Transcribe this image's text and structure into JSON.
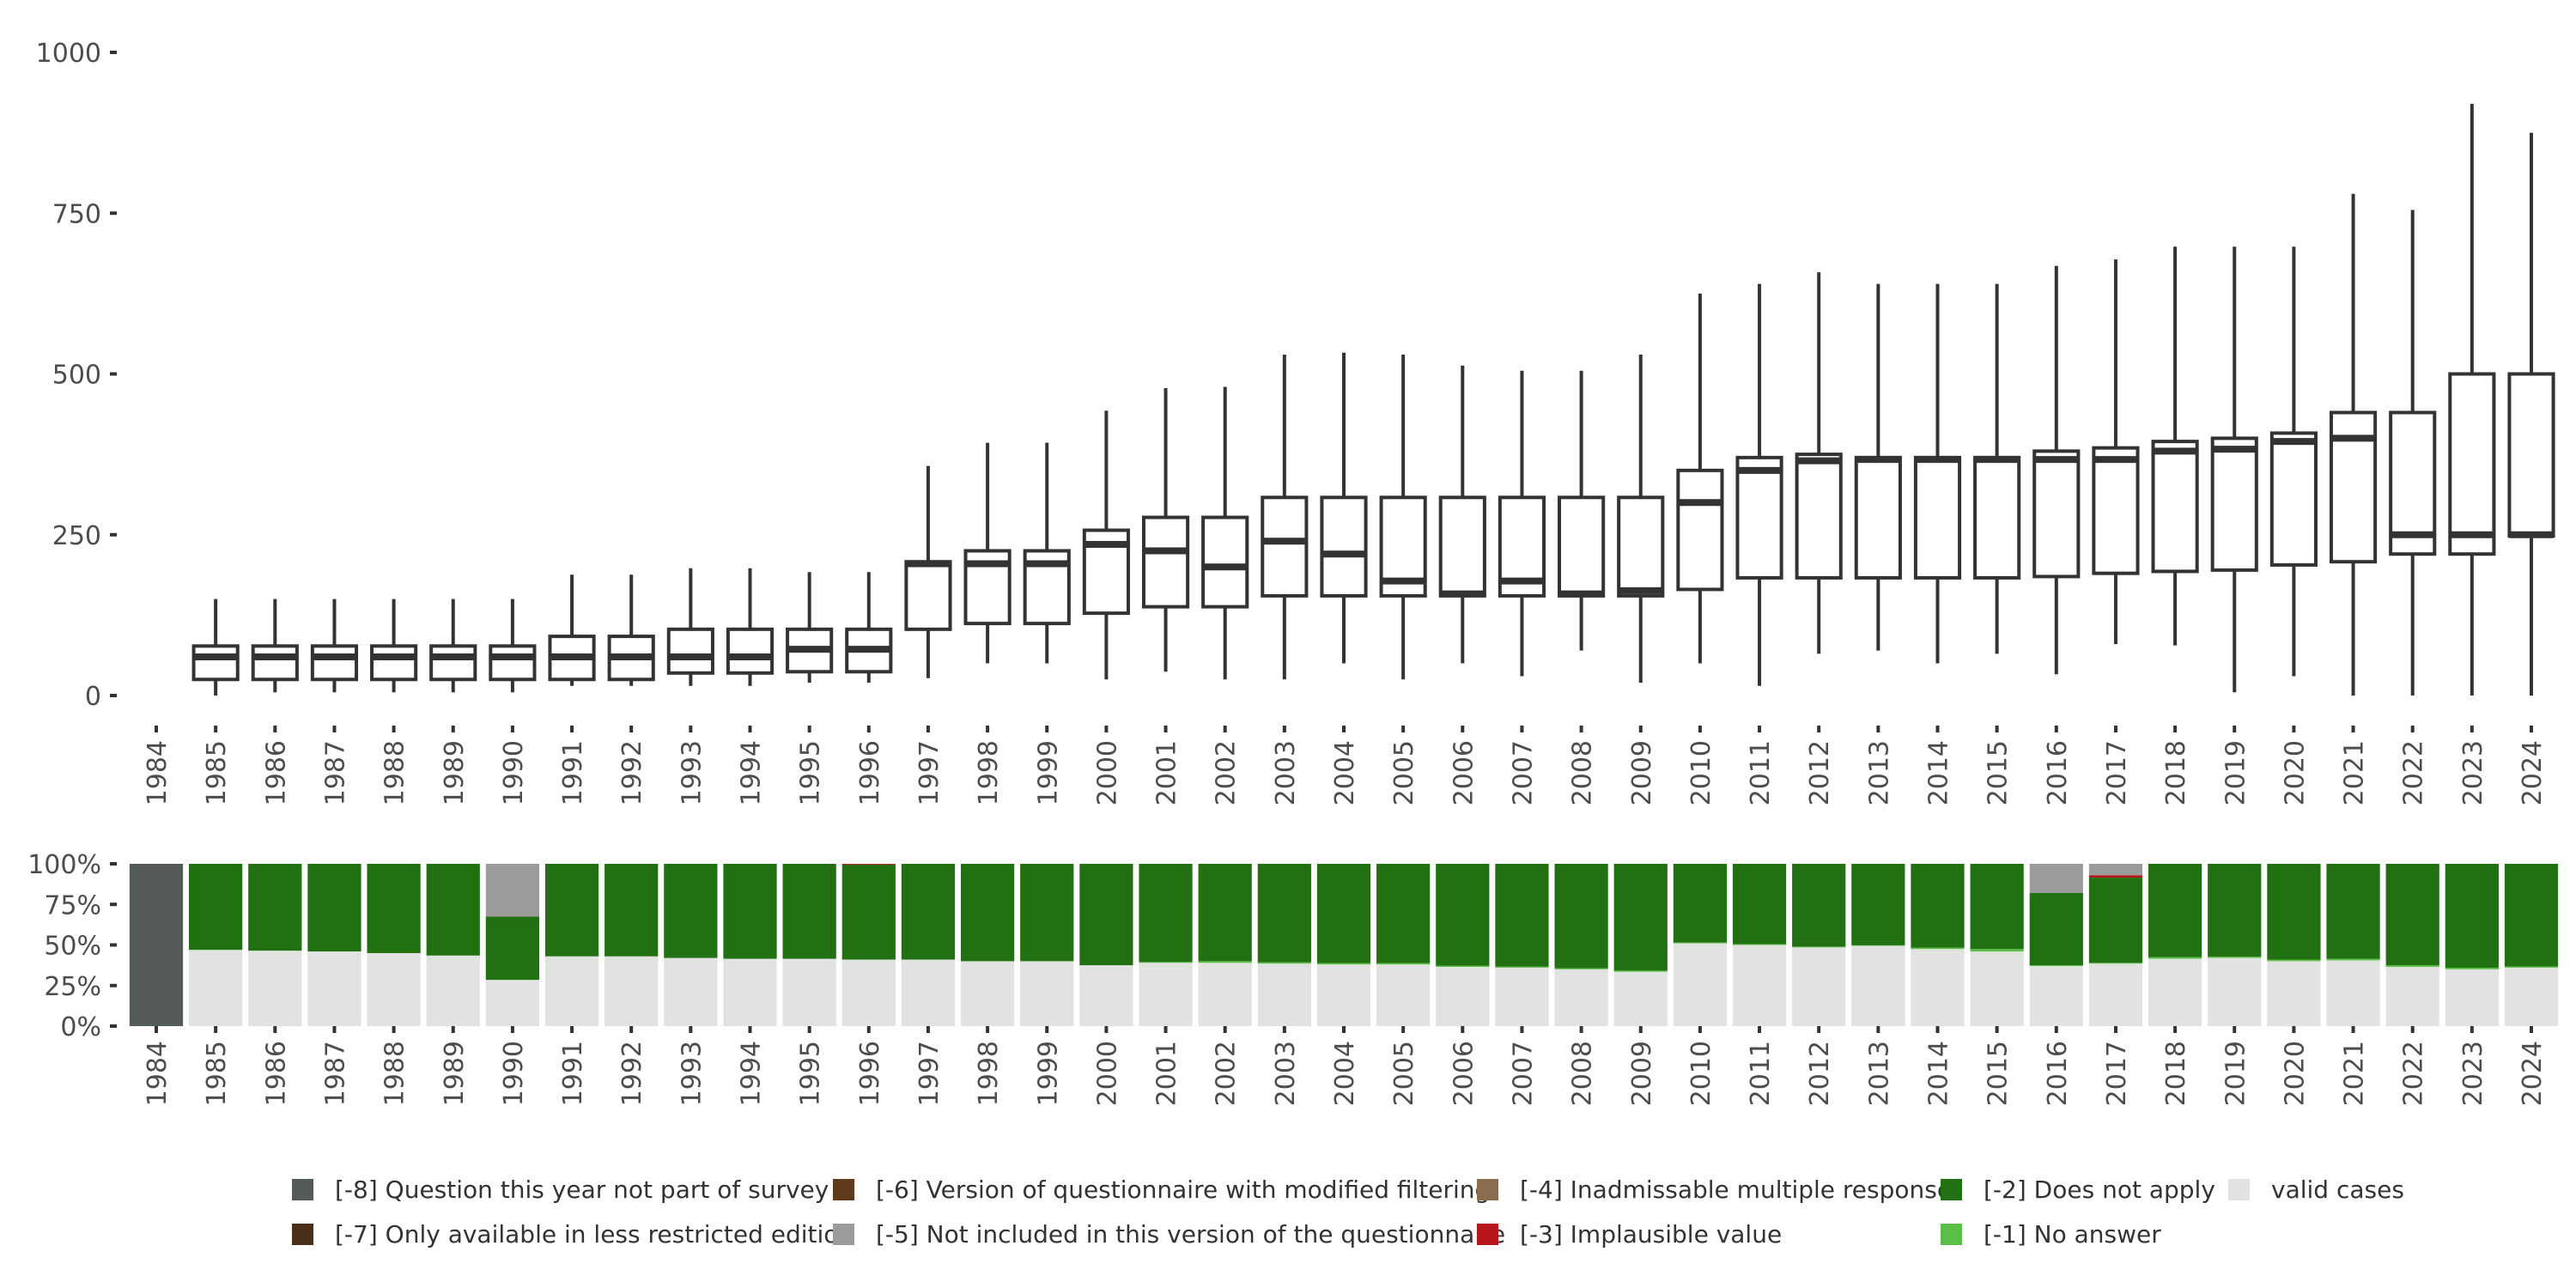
{
  "chart_data": [
    {
      "type": "boxplot",
      "years": [
        "1984",
        "1985",
        "1986",
        "1987",
        "1988",
        "1989",
        "1990",
        "1991",
        "1992",
        "1993",
        "1994",
        "1995",
        "1996",
        "1997",
        "1998",
        "1999",
        "2000",
        "2001",
        "2002",
        "2003",
        "2004",
        "2005",
        "2006",
        "2007",
        "2008",
        "2009",
        "2010",
        "2011",
        "2012",
        "2013",
        "2014",
        "2015",
        "2016",
        "2017",
        "2018",
        "2019",
        "2020",
        "2021",
        "2022",
        "2023",
        "2024"
      ],
      "yticks": [
        0,
        250,
        500,
        750,
        1000
      ],
      "ylim": [
        0,
        1000
      ],
      "boxes": [
        null,
        {
          "whisker_low": 0,
          "q1": 25,
          "median": 60,
          "q3": 77,
          "whisker_high": 150
        },
        {
          "whisker_low": 5,
          "q1": 25,
          "median": 60,
          "q3": 77,
          "whisker_high": 150
        },
        {
          "whisker_low": 5,
          "q1": 25,
          "median": 60,
          "q3": 77,
          "whisker_high": 150
        },
        {
          "whisker_low": 5,
          "q1": 25,
          "median": 60,
          "q3": 77,
          "whisker_high": 150
        },
        {
          "whisker_low": 5,
          "q1": 25,
          "median": 60,
          "q3": 77,
          "whisker_high": 150
        },
        {
          "whisker_low": 5,
          "q1": 25,
          "median": 60,
          "q3": 77,
          "whisker_high": 150
        },
        {
          "whisker_low": 15,
          "q1": 25,
          "median": 60,
          "q3": 92,
          "whisker_high": 188
        },
        {
          "whisker_low": 15,
          "q1": 25,
          "median": 60,
          "q3": 92,
          "whisker_high": 188
        },
        {
          "whisker_low": 15,
          "q1": 35,
          "median": 60,
          "q3": 103,
          "whisker_high": 198
        },
        {
          "whisker_low": 15,
          "q1": 35,
          "median": 60,
          "q3": 103,
          "whisker_high": 198
        },
        {
          "whisker_low": 20,
          "q1": 37,
          "median": 72,
          "q3": 103,
          "whisker_high": 192
        },
        {
          "whisker_low": 20,
          "q1": 37,
          "median": 72,
          "q3": 103,
          "whisker_high": 192
        },
        {
          "whisker_low": 27,
          "q1": 103,
          "median": 205,
          "q3": 208,
          "whisker_high": 357
        },
        {
          "whisker_low": 50,
          "q1": 112,
          "median": 205,
          "q3": 225,
          "whisker_high": 393
        },
        {
          "whisker_low": 50,
          "q1": 112,
          "median": 205,
          "q3": 225,
          "whisker_high": 393
        },
        {
          "whisker_low": 25,
          "q1": 128,
          "median": 235,
          "q3": 257,
          "whisker_high": 443
        },
        {
          "whisker_low": 37,
          "q1": 138,
          "median": 225,
          "q3": 277,
          "whisker_high": 478
        },
        {
          "whisker_low": 25,
          "q1": 138,
          "median": 200,
          "q3": 277,
          "whisker_high": 480
        },
        {
          "whisker_low": 25,
          "q1": 155,
          "median": 240,
          "q3": 308,
          "whisker_high": 530
        },
        {
          "whisker_low": 50,
          "q1": 155,
          "median": 220,
          "q3": 308,
          "whisker_high": 533
        },
        {
          "whisker_low": 25,
          "q1": 155,
          "median": 178,
          "q3": 308,
          "whisker_high": 530
        },
        {
          "whisker_low": 50,
          "q1": 155,
          "median": 158,
          "q3": 308,
          "whisker_high": 513
        },
        {
          "whisker_low": 30,
          "q1": 155,
          "median": 178,
          "q3": 308,
          "whisker_high": 505
        },
        {
          "whisker_low": 70,
          "q1": 155,
          "median": 158,
          "q3": 308,
          "whisker_high": 505
        },
        {
          "whisker_low": 20,
          "q1": 155,
          "median": 163,
          "q3": 308,
          "whisker_high": 530
        },
        {
          "whisker_low": 50,
          "q1": 165,
          "median": 300,
          "q3": 350,
          "whisker_high": 625
        },
        {
          "whisker_low": 15,
          "q1": 183,
          "median": 350,
          "q3": 370,
          "whisker_high": 640
        },
        {
          "whisker_low": 65,
          "q1": 183,
          "median": 365,
          "q3": 375,
          "whisker_high": 658
        },
        {
          "whisker_low": 70,
          "q1": 183,
          "median": 367,
          "q3": 370,
          "whisker_high": 640
        },
        {
          "whisker_low": 50,
          "q1": 183,
          "median": 367,
          "q3": 370,
          "whisker_high": 640
        },
        {
          "whisker_low": 65,
          "q1": 183,
          "median": 367,
          "q3": 370,
          "whisker_high": 640
        },
        {
          "whisker_low": 33,
          "q1": 185,
          "median": 367,
          "q3": 380,
          "whisker_high": 668
        },
        {
          "whisker_low": 80,
          "q1": 190,
          "median": 367,
          "q3": 385,
          "whisker_high": 678
        },
        {
          "whisker_low": 78,
          "q1": 193,
          "median": 380,
          "q3": 395,
          "whisker_high": 698
        },
        {
          "whisker_low": 5,
          "q1": 195,
          "median": 383,
          "q3": 400,
          "whisker_high": 698
        },
        {
          "whisker_low": 30,
          "q1": 203,
          "median": 395,
          "q3": 408,
          "whisker_high": 698
        },
        {
          "whisker_low": 0,
          "q1": 208,
          "median": 400,
          "q3": 440,
          "whisker_high": 780
        },
        {
          "whisker_low": 0,
          "q1": 220,
          "median": 250,
          "q3": 440,
          "whisker_high": 755
        },
        {
          "whisker_low": 0,
          "q1": 220,
          "median": 250,
          "q3": 500,
          "whisker_high": 920
        },
        {
          "whisker_low": 0,
          "q1": 248,
          "median": 250,
          "q3": 500,
          "whisker_high": 875
        }
      ]
    },
    {
      "type": "stacked_bar_percent",
      "years": [
        "1984",
        "1985",
        "1986",
        "1987",
        "1988",
        "1989",
        "1990",
        "1991",
        "1992",
        "1993",
        "1994",
        "1995",
        "1996",
        "1997",
        "1998",
        "1999",
        "2000",
        "2001",
        "2002",
        "2003",
        "2004",
        "2005",
        "2006",
        "2007",
        "2008",
        "2009",
        "2010",
        "2011",
        "2012",
        "2013",
        "2014",
        "2015",
        "2016",
        "2017",
        "2018",
        "2019",
        "2020",
        "2021",
        "2022",
        "2023",
        "2024"
      ],
      "ytick_labels": [
        "0%",
        "25%",
        "50%",
        "75%",
        "100%"
      ],
      "yticks": [
        0,
        25,
        50,
        75,
        100
      ],
      "ylim": [
        0,
        100
      ],
      "stack_order": [
        "valid",
        "na1",
        "dna2",
        "implaus3",
        "multi4",
        "notincl5",
        "restricted7",
        "modfilter6",
        "notpart8"
      ],
      "segments": [
        {
          "notpart8": 100
        },
        {
          "valid": 47,
          "dna2": 53
        },
        {
          "valid": 46.5,
          "dna2": 53.5
        },
        {
          "valid": 46,
          "dna2": 54
        },
        {
          "valid": 45,
          "dna2": 55
        },
        {
          "valid": 43.5,
          "dna2": 56.5
        },
        {
          "valid": 28.5,
          "dna2": 39,
          "notincl5": 32.5
        },
        {
          "valid": 43,
          "dna2": 57
        },
        {
          "valid": 43,
          "dna2": 57
        },
        {
          "valid": 42,
          "dna2": 58
        },
        {
          "valid": 41.5,
          "dna2": 58.5
        },
        {
          "valid": 41.5,
          "dna2": 58.5
        },
        {
          "valid": 41,
          "dna2": 58.5,
          "implaus3": 0.5
        },
        {
          "valid": 41,
          "dna2": 59
        },
        {
          "valid": 40,
          "dna2": 60
        },
        {
          "valid": 40,
          "dna2": 60
        },
        {
          "valid": 37.5,
          "dna2": 62.5
        },
        {
          "valid": 39,
          "na1": 0.5,
          "dna2": 60.5
        },
        {
          "valid": 39,
          "na1": 1,
          "dna2": 60
        },
        {
          "valid": 38.5,
          "na1": 0.8,
          "dna2": 60.7
        },
        {
          "valid": 38,
          "na1": 0.8,
          "dna2": 61.2
        },
        {
          "valid": 38,
          "na1": 0.8,
          "dna2": 61.2
        },
        {
          "valid": 36.5,
          "na1": 0.7,
          "dna2": 62.8
        },
        {
          "valid": 36,
          "na1": 0.7,
          "dna2": 63.3
        },
        {
          "valid": 35,
          "na1": 0.7,
          "dna2": 64.3
        },
        {
          "valid": 33.5,
          "na1": 0.7,
          "dna2": 65.8
        },
        {
          "valid": 51,
          "na1": 0.5,
          "dna2": 48.5
        },
        {
          "valid": 50,
          "na1": 0.5,
          "dna2": 49.5
        },
        {
          "valid": 48.5,
          "na1": 0.5,
          "dna2": 51
        },
        {
          "valid": 49.5,
          "na1": 0.3,
          "dna2": 50.2
        },
        {
          "valid": 47.5,
          "na1": 0.8,
          "dna2": 51.7
        },
        {
          "valid": 46,
          "na1": 1.5,
          "dna2": 52.5
        },
        {
          "valid": 37,
          "na1": 0.5,
          "dna2": 44.5,
          "notincl5": 18
        },
        {
          "valid": 38.5,
          "na1": 0.5,
          "dna2": 52.5,
          "implaus3": 1.5,
          "notincl5": 7
        },
        {
          "valid": 41.5,
          "na1": 1,
          "dna2": 57.5
        },
        {
          "valid": 42,
          "na1": 0.8,
          "dna2": 57.2
        },
        {
          "valid": 40,
          "na1": 1,
          "dna2": 59
        },
        {
          "valid": 40.5,
          "na1": 1,
          "dna2": 58.5
        },
        {
          "valid": 36.5,
          "na1": 1,
          "dna2": 62.5
        },
        {
          "valid": 35,
          "na1": 1,
          "dna2": 64
        },
        {
          "valid": 36,
          "na1": 0.8,
          "dna2": 63.2
        }
      ]
    }
  ],
  "legend": {
    "items": [
      {
        "key": "notpart8",
        "label": "[-8] Question this year not part of survey",
        "color": "#545b57"
      },
      {
        "key": "restricted7",
        "label": "[-7] Only available in less restricted edition",
        "color": "#4a2e17"
      },
      {
        "key": "modfilter6",
        "label": "[-6] Version of questionnaire with modified filtering",
        "color": "#5f3a1b"
      },
      {
        "key": "notincl5",
        "label": "[-5] Not included in this version of the questionnaire",
        "color": "#9b9c99"
      },
      {
        "key": "multi4",
        "label": "[-4] Inadmissable multiple response",
        "color": "#8c6c4f"
      },
      {
        "key": "implaus3",
        "label": "[-3] Implausible value",
        "color": "#b7171a"
      },
      {
        "key": "dna2",
        "label": "[-2] Does not apply",
        "color": "#217011"
      },
      {
        "key": "na1",
        "label": "[-1] No answer",
        "color": "#5bbe47"
      },
      {
        "key": "valid",
        "label": "valid cases",
        "color": "#e0e3df"
      }
    ]
  }
}
